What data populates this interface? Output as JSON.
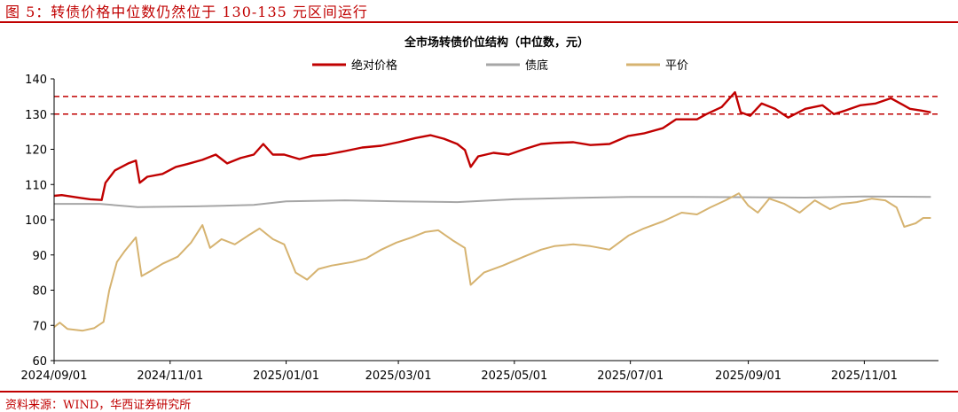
{
  "figure": {
    "title": "图 5：转债价格中位数仍然位于 130-135 元区间运行",
    "source": "资料来源：WIND，华西证券研究所"
  },
  "chart_data": {
    "type": "line",
    "title": "全市场转债价位结构（中位数，元）",
    "xlabel": "",
    "ylabel": "",
    "ylim": [
      60,
      140
    ],
    "yticks": [
      60,
      70,
      80,
      90,
      100,
      110,
      120,
      130,
      140
    ],
    "xlim": [
      "2024-09-01",
      "2025-12-10"
    ],
    "xticks": [
      "2024/09/01",
      "2024/11/01",
      "2025/01/01",
      "2025/03/01",
      "2025/05/01",
      "2025/07/01",
      "2025/09/01",
      "2025/11/01"
    ],
    "legend_position": "top-center",
    "grid": false,
    "reference_lines": [
      {
        "y": 135,
        "color": "#c00000",
        "style": "dashed"
      },
      {
        "y": 130,
        "color": "#c00000",
        "style": "dashed"
      }
    ],
    "series": [
      {
        "name": "绝对价格",
        "color": "#c00000",
        "points": [
          [
            "2024-09-01",
            106.8
          ],
          [
            "2024-09-05",
            107.0
          ],
          [
            "2024-09-10",
            106.6
          ],
          [
            "2024-09-15",
            106.2
          ],
          [
            "2024-09-20",
            105.8
          ],
          [
            "2024-09-26",
            105.6
          ],
          [
            "2024-09-28",
            110.5
          ],
          [
            "2024-10-03",
            114.0
          ],
          [
            "2024-10-10",
            116.0
          ],
          [
            "2024-10-14",
            116.8
          ],
          [
            "2024-10-16",
            110.5
          ],
          [
            "2024-10-20",
            112.2
          ],
          [
            "2024-10-28",
            113.0
          ],
          [
            "2024-11-04",
            115.0
          ],
          [
            "2024-11-10",
            115.8
          ],
          [
            "2024-11-18",
            117.0
          ],
          [
            "2024-11-25",
            118.5
          ],
          [
            "2024-12-01",
            116.0
          ],
          [
            "2024-12-08",
            117.5
          ],
          [
            "2024-12-15",
            118.5
          ],
          [
            "2024-12-20",
            121.5
          ],
          [
            "2024-12-25",
            118.5
          ],
          [
            "2024-12-31",
            118.5
          ],
          [
            "2025-01-08",
            117.2
          ],
          [
            "2025-01-15",
            118.2
          ],
          [
            "2025-01-22",
            118.5
          ],
          [
            "2025-02-01",
            119.5
          ],
          [
            "2025-02-10",
            120.5
          ],
          [
            "2025-02-20",
            121.0
          ],
          [
            "2025-03-01",
            122.0
          ],
          [
            "2025-03-10",
            123.2
          ],
          [
            "2025-03-18",
            124.0
          ],
          [
            "2025-03-25",
            123.0
          ],
          [
            "2025-04-01",
            121.5
          ],
          [
            "2025-04-05",
            119.8
          ],
          [
            "2025-04-08",
            115.0
          ],
          [
            "2025-04-12",
            118.0
          ],
          [
            "2025-04-20",
            119.0
          ],
          [
            "2025-04-28",
            118.5
          ],
          [
            "2025-05-06",
            120.0
          ],
          [
            "2025-05-15",
            121.5
          ],
          [
            "2025-05-22",
            121.8
          ],
          [
            "2025-06-01",
            122.0
          ],
          [
            "2025-06-10",
            121.2
          ],
          [
            "2025-06-20",
            121.5
          ],
          [
            "2025-06-30",
            123.8
          ],
          [
            "2025-07-08",
            124.5
          ],
          [
            "2025-07-18",
            126.0
          ],
          [
            "2025-07-25",
            128.5
          ],
          [
            "2025-08-05",
            128.5
          ],
          [
            "2025-08-10",
            130.0
          ],
          [
            "2025-08-18",
            132.0
          ],
          [
            "2025-08-25",
            136.2
          ],
          [
            "2025-08-28",
            130.5
          ],
          [
            "2025-09-02",
            129.5
          ],
          [
            "2025-09-08",
            133.0
          ],
          [
            "2025-09-15",
            131.5
          ],
          [
            "2025-09-22",
            129.0
          ],
          [
            "2025-10-01",
            131.5
          ],
          [
            "2025-10-10",
            132.5
          ],
          [
            "2025-10-16",
            130.0
          ],
          [
            "2025-10-22",
            131.0
          ],
          [
            "2025-10-30",
            132.5
          ],
          [
            "2025-11-07",
            133.0
          ],
          [
            "2025-11-15",
            134.5
          ],
          [
            "2025-11-20",
            133.0
          ],
          [
            "2025-11-25",
            131.5
          ],
          [
            "2025-12-01",
            131.0
          ],
          [
            "2025-12-06",
            130.5
          ]
        ]
      },
      {
        "name": "债底",
        "color": "#a6a6a6",
        "points": [
          [
            "2024-09-01",
            104.5
          ],
          [
            "2024-09-25",
            104.5
          ],
          [
            "2024-10-15",
            103.6
          ],
          [
            "2024-11-15",
            103.8
          ],
          [
            "2024-12-15",
            104.2
          ],
          [
            "2025-01-01",
            105.2
          ],
          [
            "2025-02-01",
            105.5
          ],
          [
            "2025-03-01",
            105.2
          ],
          [
            "2025-04-01",
            105.0
          ],
          [
            "2025-05-01",
            105.8
          ],
          [
            "2025-06-01",
            106.2
          ],
          [
            "2025-07-01",
            106.5
          ],
          [
            "2025-08-01",
            106.5
          ],
          [
            "2025-09-01",
            106.4
          ],
          [
            "2025-10-01",
            106.3
          ],
          [
            "2025-11-01",
            106.6
          ],
          [
            "2025-12-06",
            106.5
          ]
        ]
      },
      {
        "name": "平价",
        "color": "#d6b370",
        "points": [
          [
            "2024-09-01",
            69.5
          ],
          [
            "2024-09-04",
            70.8
          ],
          [
            "2024-09-08",
            69.0
          ],
          [
            "2024-09-16",
            68.5
          ],
          [
            "2024-09-22",
            69.2
          ],
          [
            "2024-09-27",
            71.0
          ],
          [
            "2024-09-30",
            80.0
          ],
          [
            "2024-10-04",
            88.0
          ],
          [
            "2024-10-08",
            91.0
          ],
          [
            "2024-10-14",
            95.0
          ],
          [
            "2024-10-17",
            84.0
          ],
          [
            "2024-10-22",
            85.5
          ],
          [
            "2024-10-28",
            87.5
          ],
          [
            "2024-11-05",
            89.5
          ],
          [
            "2024-11-12",
            93.5
          ],
          [
            "2024-11-18",
            98.5
          ],
          [
            "2024-11-22",
            92.0
          ],
          [
            "2024-11-28",
            94.5
          ],
          [
            "2024-12-05",
            93.0
          ],
          [
            "2024-12-12",
            95.5
          ],
          [
            "2024-12-18",
            97.5
          ],
          [
            "2024-12-25",
            94.5
          ],
          [
            "2024-12-31",
            93.0
          ],
          [
            "2025-01-06",
            85.0
          ],
          [
            "2025-01-12",
            83.0
          ],
          [
            "2025-01-18",
            86.0
          ],
          [
            "2025-01-25",
            87.0
          ],
          [
            "2025-02-05",
            88.0
          ],
          [
            "2025-02-12",
            89.0
          ],
          [
            "2025-02-20",
            91.5
          ],
          [
            "2025-02-28",
            93.5
          ],
          [
            "2025-03-08",
            95.0
          ],
          [
            "2025-03-15",
            96.5
          ],
          [
            "2025-03-22",
            97.0
          ],
          [
            "2025-03-30",
            94.0
          ],
          [
            "2025-04-05",
            92.0
          ],
          [
            "2025-04-08",
            81.5
          ],
          [
            "2025-04-15",
            85.0
          ],
          [
            "2025-04-25",
            87.0
          ],
          [
            "2025-05-06",
            89.5
          ],
          [
            "2025-05-15",
            91.5
          ],
          [
            "2025-05-22",
            92.5
          ],
          [
            "2025-06-01",
            93.0
          ],
          [
            "2025-06-10",
            92.5
          ],
          [
            "2025-06-20",
            91.5
          ],
          [
            "2025-06-30",
            95.5
          ],
          [
            "2025-07-08",
            97.5
          ],
          [
            "2025-07-18",
            99.5
          ],
          [
            "2025-07-28",
            102.0
          ],
          [
            "2025-08-05",
            101.5
          ],
          [
            "2025-08-12",
            103.5
          ],
          [
            "2025-08-20",
            105.5
          ],
          [
            "2025-08-27",
            107.5
          ],
          [
            "2025-09-01",
            104.0
          ],
          [
            "2025-09-06",
            102.0
          ],
          [
            "2025-09-12",
            106.0
          ],
          [
            "2025-09-20",
            104.5
          ],
          [
            "2025-09-28",
            102.0
          ],
          [
            "2025-10-06",
            105.5
          ],
          [
            "2025-10-14",
            103.0
          ],
          [
            "2025-10-20",
            104.5
          ],
          [
            "2025-10-28",
            105.0
          ],
          [
            "2025-11-05",
            106.0
          ],
          [
            "2025-11-12",
            105.5
          ],
          [
            "2025-11-18",
            103.5
          ],
          [
            "2025-11-22",
            98.0
          ],
          [
            "2025-11-28",
            99.0
          ],
          [
            "2025-12-02",
            100.5
          ],
          [
            "2025-12-06",
            100.5
          ]
        ]
      }
    ]
  }
}
